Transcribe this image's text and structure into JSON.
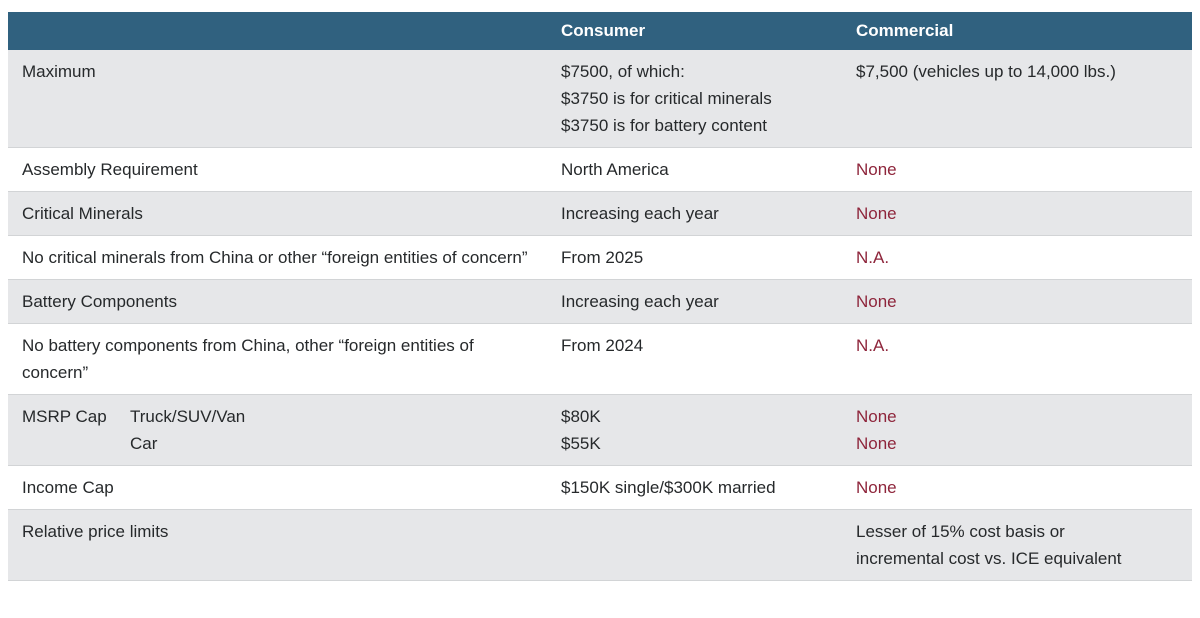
{
  "chart_data": {
    "type": "table",
    "columns": [
      "",
      "Consumer",
      "Commercial"
    ],
    "rows": [
      {
        "label": "Maximum",
        "consumer": [
          "$7500, of which:",
          "$3750 is for critical minerals",
          "$3750 is for battery content"
        ],
        "commercial": [
          "$7,500 (vehicles up to 14,000 lbs.)"
        ],
        "commercial_accent": false
      },
      {
        "label": "Assembly Requirement",
        "consumer": [
          "North America"
        ],
        "commercial": [
          "None"
        ],
        "commercial_accent": true
      },
      {
        "label": "Critical Minerals",
        "consumer": [
          "Increasing each year"
        ],
        "commercial": [
          "None"
        ],
        "commercial_accent": true
      },
      {
        "label": "No critical minerals from China or other “foreign entities of concern”",
        "consumer": [
          "From 2025"
        ],
        "commercial": [
          "N.A."
        ],
        "commercial_accent": true
      },
      {
        "label": "Battery Components",
        "consumer": [
          "Increasing each year"
        ],
        "commercial": [
          "None"
        ],
        "commercial_accent": true
      },
      {
        "label": "No battery components from China, other “foreign entities of concern”",
        "consumer": [
          "From 2024"
        ],
        "commercial": [
          "N.A."
        ],
        "commercial_accent": true
      },
      {
        "label": "MSRP Cap",
        "sub_labels": [
          "Truck/SUV/Van",
          "Car"
        ],
        "consumer": [
          "$80K",
          "$55K"
        ],
        "commercial": [
          "None",
          "None"
        ],
        "commercial_accent": true
      },
      {
        "label": "Income Cap",
        "consumer": [
          "$150K single/$300K married"
        ],
        "commercial": [
          "None"
        ],
        "commercial_accent": true
      },
      {
        "label": "Relative price limits",
        "consumer": [],
        "commercial": [
          "Lesser of 15% cost basis or",
          "incremental cost vs. ICE equivalent"
        ],
        "commercial_accent": false
      }
    ]
  },
  "colors": {
    "header_bg": "#30617f",
    "header_text": "#ffffff",
    "row_alt_bg": "#e6e7e9",
    "row_bg": "#ffffff",
    "accent": "#8e253b",
    "text": "#26292b",
    "divider": "#d2d4d6"
  }
}
